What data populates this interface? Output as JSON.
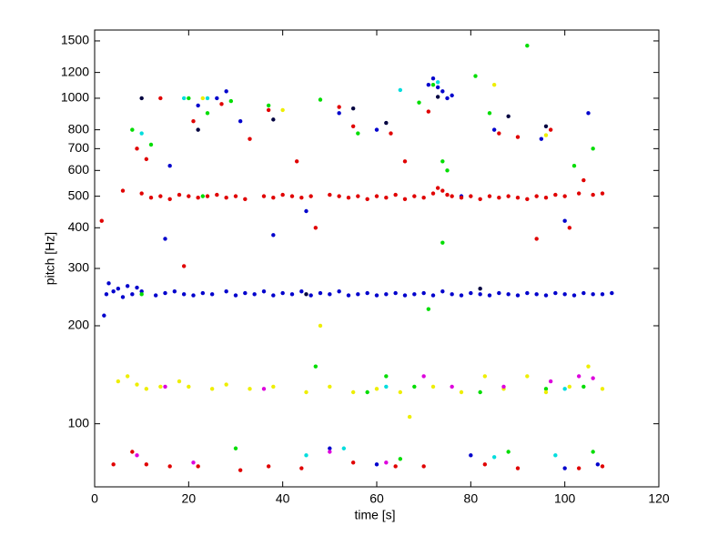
{
  "chart_data": {
    "type": "scatter",
    "xlabel": "time [s]",
    "ylabel": "pitch [Hz]",
    "xlim": [
      0,
      120
    ],
    "xticks": [
      0,
      20,
      40,
      60,
      80,
      100,
      120
    ],
    "ylim": [
      64,
      1620
    ],
    "yticks": [
      100,
      200,
      300,
      400,
      500,
      600,
      700,
      800,
      1000,
      1200,
      1500
    ],
    "yscale": "log",
    "series": [
      {
        "color": "#0000cc",
        "x": [
          2,
          2.5,
          3,
          4,
          5,
          6,
          7,
          8,
          9,
          10,
          13,
          15,
          17,
          19,
          21,
          23,
          25,
          28,
          30,
          32,
          34,
          36,
          38,
          40,
          42,
          44,
          46,
          48,
          50,
          52,
          54,
          56,
          58,
          60,
          62,
          64,
          66,
          68,
          70,
          72,
          74,
          76,
          78,
          80,
          82,
          84,
          86,
          88,
          90,
          92,
          94,
          96,
          98,
          100,
          102,
          104,
          106,
          108,
          110,
          15,
          16,
          22,
          26,
          28,
          31,
          38,
          45,
          52,
          60,
          71,
          72,
          73,
          74,
          75,
          76,
          78,
          85,
          95,
          100,
          105,
          50,
          60,
          80,
          100,
          107
        ],
        "values": [
          215,
          250,
          270,
          255,
          260,
          245,
          265,
          250,
          262,
          255,
          248,
          252,
          255,
          250,
          248,
          252,
          250,
          255,
          248,
          252,
          250,
          255,
          248,
          252,
          250,
          255,
          248,
          252,
          250,
          255,
          248,
          250,
          252,
          248,
          250,
          252,
          248,
          250,
          252,
          248,
          255,
          250,
          248,
          252,
          250,
          248,
          252,
          250,
          248,
          252,
          250,
          248,
          252,
          250,
          248,
          252,
          250,
          250,
          252,
          370,
          620,
          950,
          1000,
          1050,
          850,
          380,
          450,
          900,
          800,
          1100,
          1150,
          1080,
          1050,
          1000,
          1020,
          500,
          800,
          750,
          420,
          900,
          84,
          75,
          80,
          73,
          75
        ]
      },
      {
        "color": "#e00000",
        "x": [
          10,
          12,
          14,
          16,
          18,
          20,
          22,
          24,
          26,
          28,
          30,
          32,
          36,
          38,
          40,
          42,
          44,
          46,
          50,
          52,
          54,
          56,
          58,
          60,
          62,
          64,
          66,
          68,
          70,
          72,
          73,
          74,
          75,
          76,
          78,
          80,
          82,
          84,
          86,
          88,
          90,
          92,
          94,
          96,
          98,
          100,
          103,
          106,
          108,
          1.5,
          6,
          9,
          11,
          14,
          19,
          21,
          27,
          33,
          37,
          43,
          47,
          52,
          55,
          63,
          66,
          71,
          86,
          90,
          94,
          97,
          101,
          104,
          4,
          8,
          11,
          16,
          22,
          31,
          37,
          44,
          55,
          64,
          70,
          83,
          90,
          103,
          108
        ],
        "values": [
          510,
          495,
          500,
          490,
          505,
          500,
          495,
          500,
          505,
          495,
          500,
          490,
          500,
          495,
          505,
          500,
          495,
          500,
          505,
          500,
          495,
          500,
          490,
          500,
          495,
          505,
          490,
          500,
          495,
          510,
          530,
          520,
          505,
          500,
          495,
          500,
          490,
          500,
          495,
          500,
          495,
          490,
          500,
          495,
          505,
          500,
          510,
          505,
          510,
          420,
          520,
          700,
          650,
          1000,
          305,
          850,
          960,
          750,
          920,
          640,
          400,
          940,
          820,
          780,
          640,
          910,
          780,
          760,
          370,
          800,
          400,
          560,
          75,
          82,
          75,
          74,
          74,
          72,
          74,
          73,
          76,
          74,
          74,
          75,
          73,
          73,
          74
        ]
      },
      {
        "color": "#00dd00",
        "x": [
          8,
          12,
          20,
          24,
          29,
          37,
          48,
          56,
          69,
          72,
          74,
          75,
          81,
          84,
          92,
          102,
          106,
          10,
          23,
          47,
          58,
          62,
          68,
          71,
          74,
          82,
          96,
          104,
          88,
          106,
          65,
          30
        ],
        "values": [
          800,
          720,
          1000,
          900,
          980,
          950,
          990,
          780,
          970,
          1100,
          640,
          600,
          1170,
          900,
          1450,
          620,
          700,
          250,
          500,
          150,
          125,
          140,
          130,
          225,
          360,
          125,
          128,
          130,
          82,
          82,
          78,
          84
        ]
      },
      {
        "color": "#eeee00",
        "x": [
          5,
          7,
          9,
          11,
          14,
          18,
          20,
          25,
          28,
          33,
          38,
          45,
          48,
          50,
          55,
          60,
          65,
          67,
          72,
          78,
          83,
          87,
          92,
          96,
          101,
          105,
          108,
          23,
          40,
          85,
          96
        ],
        "values": [
          135,
          140,
          132,
          128,
          130,
          135,
          130,
          128,
          132,
          128,
          130,
          125,
          200,
          130,
          125,
          128,
          125,
          105,
          130,
          125,
          140,
          128,
          140,
          125,
          130,
          150,
          128,
          1000,
          920,
          1100,
          770
        ]
      },
      {
        "color": "#dd00dd",
        "x": [
          9,
          15,
          21,
          36,
          50,
          62,
          70,
          76,
          87,
          97,
          103,
          106
        ],
        "values": [
          80,
          130,
          76,
          128,
          82,
          76,
          140,
          130,
          130,
          135,
          140,
          138
        ]
      },
      {
        "color": "#00dddd",
        "x": [
          10,
          19,
          24,
          45,
          53,
          62,
          73,
          85,
          98,
          100,
          65
        ],
        "values": [
          780,
          1000,
          1000,
          80,
          84,
          130,
          1120,
          79,
          80,
          128,
          1060
        ]
      },
      {
        "color": "#000040",
        "x": [
          10,
          22,
          38,
          55,
          62,
          73,
          88,
          96,
          45,
          82
        ],
        "values": [
          1000,
          800,
          860,
          930,
          840,
          1010,
          880,
          820,
          250,
          260
        ]
      }
    ]
  }
}
